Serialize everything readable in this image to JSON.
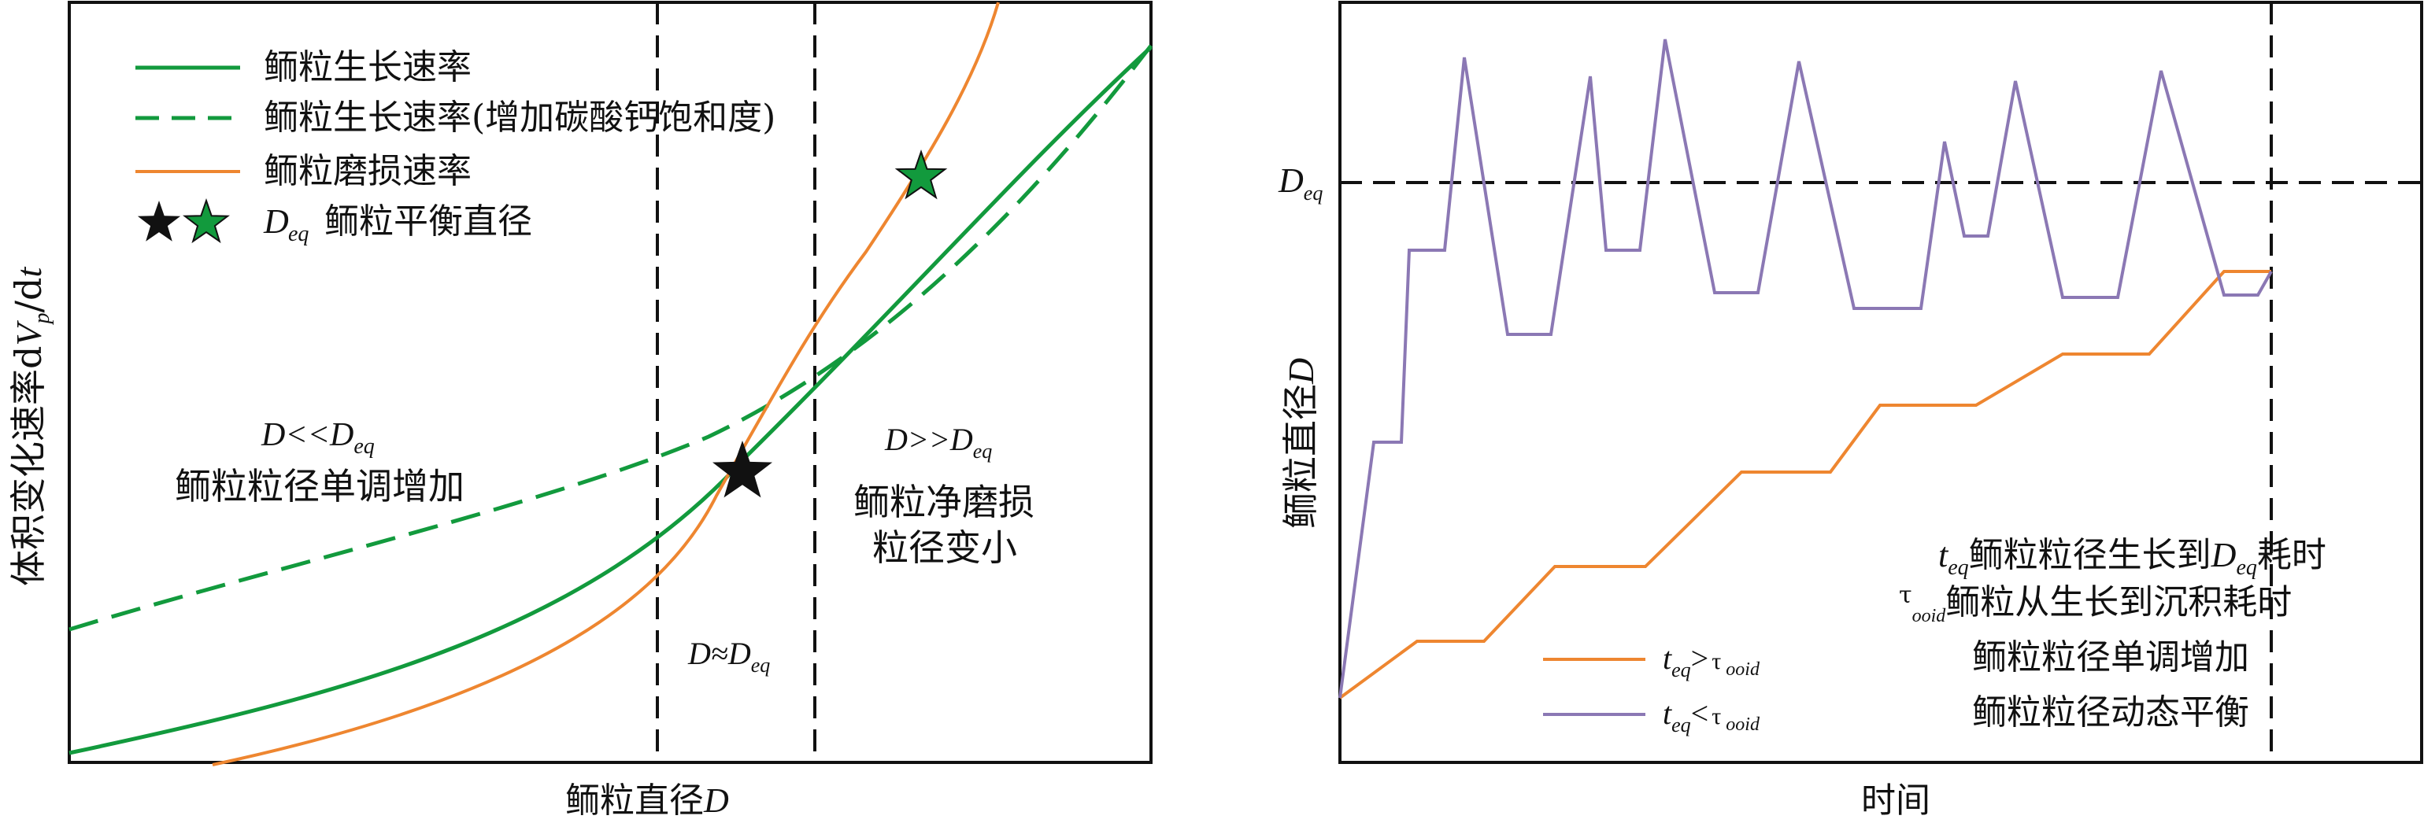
{
  "left_panel": {
    "y_axis_label_pre": "体积变化速率d",
    "y_axis_label_var": "V",
    "y_axis_label_sub": "p",
    "y_axis_label_post": "/d",
    "y_axis_label_t": "t",
    "x_axis_label": "鲕粒直径",
    "x_axis_var": "D",
    "legend": {
      "growth": "鲕粒生长速率",
      "growth_increased": "鲕粒生长速率(增加碳酸钙饱和度)",
      "abrasion": "鲕粒磨损速率",
      "equilibrium_var": "D",
      "equilibrium_sub": "eq",
      "equilibrium_text": "鲕粒平衡直径"
    },
    "region_left": {
      "cond_a": "D<<D",
      "cond_sub": "eq",
      "desc": "鲕粒粒径单调增加"
    },
    "region_mid": {
      "cond_a": "D≈D",
      "cond_sub": "eq"
    },
    "region_right": {
      "cond_a": "D>>D",
      "cond_sub": "eq",
      "desc1": "鲕粒净磨损",
      "desc2": "粒径变小"
    }
  },
  "right_panel": {
    "y_axis_label_text": "鲕粒直径",
    "y_axis_label_var": "D",
    "x_axis_label": "时间",
    "deq_var": "D",
    "deq_sub": "eq",
    "annotations": {
      "teq_var": "t",
      "teq_sub": "eq",
      "teq_text1": "鲕粒粒径生长到",
      "teq_deq_var": "D",
      "teq_deq_sub": "eq",
      "teq_text2": "耗时",
      "tau_sym": "τ",
      "tau_sub": "ooid",
      "tau_text": "鲕粒从生长到沉积耗时"
    },
    "legend": {
      "orange_t": "t",
      "orange_sub": "eq",
      "orange_op": ">",
      "orange_tau": "τ",
      "orange_tau_sub": "ooid",
      "orange_desc": "鲕粒粒径单调增加",
      "purple_t": "t",
      "purple_sub": "eq",
      "purple_op": "<",
      "purple_tau": "τ",
      "purple_tau_sub": "ooid",
      "purple_desc": "鲕粒粒径动态平衡"
    }
  },
  "colors": {
    "green": "#129a3d",
    "orange": "#ee8630",
    "purple": "#8b78b4",
    "black": "#111111"
  }
}
